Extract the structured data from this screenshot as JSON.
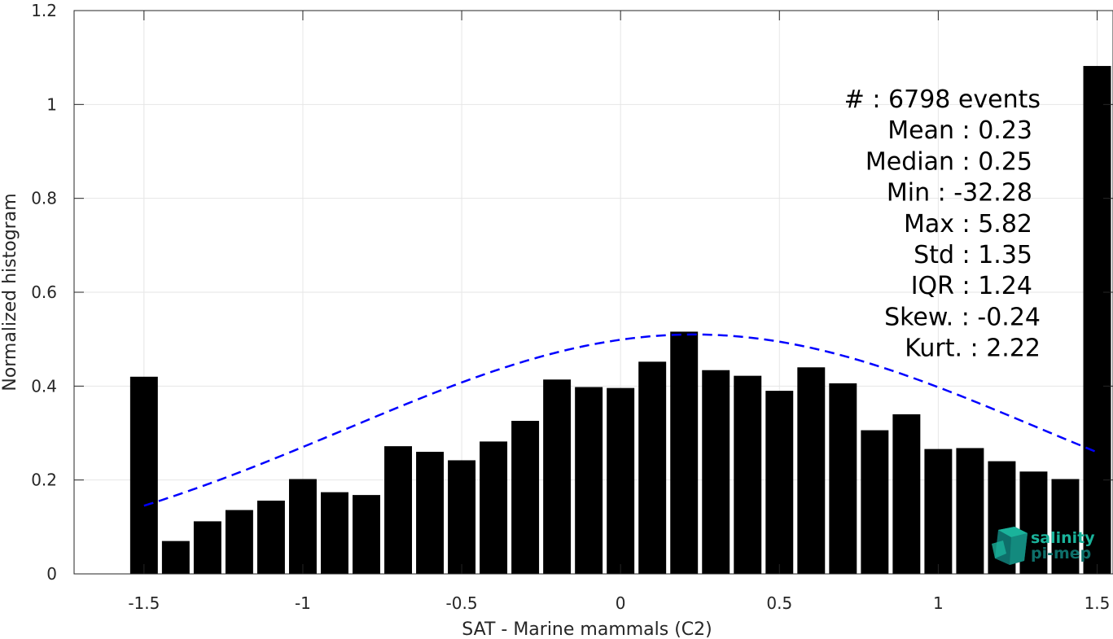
{
  "chart_data": {
    "type": "bar",
    "xlabel": "SAT - Marine mammals (C2)",
    "ylabel": "Normalized histogram",
    "xlim": [
      -1.72,
      1.55
    ],
    "ylim": [
      0,
      1.2
    ],
    "grid": true,
    "x_ticks": [
      -1.5,
      -1,
      -0.5,
      0,
      0.5,
      1,
      1.5
    ],
    "x_tick_labels": [
      "-1.5",
      "-1",
      "-0.5",
      "0",
      "0.5",
      "1",
      "1.5"
    ],
    "y_ticks": [
      0,
      0.2,
      0.4,
      0.6,
      0.8,
      1,
      1.2
    ],
    "y_tick_labels": [
      "0",
      "0.2",
      "0.4",
      "0.6",
      "0.8",
      "1",
      "1.2"
    ],
    "bin_width": 0.1,
    "bars": {
      "x": [
        -1.5,
        -1.4,
        -1.3,
        -1.2,
        -1.1,
        -1.0,
        -0.9,
        -0.8,
        -0.7,
        -0.6,
        -0.5,
        -0.4,
        -0.3,
        -0.2,
        -0.1,
        0.0,
        0.1,
        0.2,
        0.3,
        0.4,
        0.5,
        0.6,
        0.7,
        0.8,
        0.9,
        1.0,
        1.1,
        1.2,
        1.3,
        1.4,
        1.5
      ],
      "values": [
        0.42,
        0.07,
        0.112,
        0.136,
        0.156,
        0.202,
        0.174,
        0.168,
        0.272,
        0.26,
        0.242,
        0.282,
        0.326,
        0.414,
        0.398,
        0.396,
        0.452,
        0.516,
        0.434,
        0.422,
        0.39,
        0.44,
        0.406,
        0.306,
        0.34,
        0.266,
        0.268,
        0.24,
        0.218,
        0.202,
        1.082
      ],
      "color": "#000000"
    },
    "fit_curve": {
      "type": "normal",
      "mean": 0.23,
      "std": 1.35,
      "peak": 0.51,
      "x_range": [
        -1.5,
        1.5
      ],
      "style": "dashed",
      "color": "#0000ff"
    },
    "stats": [
      {
        "label": "#  : 6798 events"
      },
      {
        "label": "Mean : 0.23"
      },
      {
        "label": "Median : 0.25"
      },
      {
        "label": "Min : -32.28"
      },
      {
        "label": "Max : 5.82"
      },
      {
        "label": "Std : 1.35"
      },
      {
        "label": "IQR : 1.24"
      },
      {
        "label": "Skew. : -0.24"
      },
      {
        "label": "Kurt. : 2.22"
      }
    ]
  },
  "logo": {
    "line1": "salinity",
    "line2": "pi-mep",
    "color1": "#1ab39b",
    "color2": "#0e6f6a"
  }
}
